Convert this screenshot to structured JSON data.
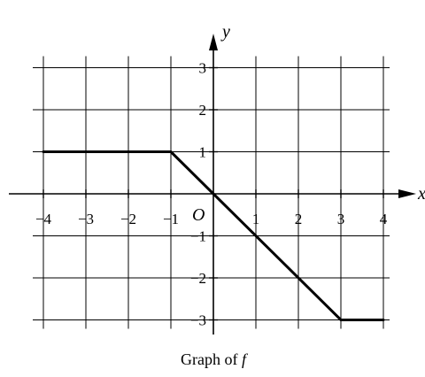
{
  "chart_data": {
    "type": "line",
    "title": "Graph of f",
    "caption_prefix": "Graph of ",
    "caption_var": "f",
    "xlabel": "x",
    "ylabel": "y",
    "origin_label": "O",
    "xlim": [
      -4,
      4
    ],
    "ylim": [
      -3,
      3
    ],
    "grid": true,
    "x_ticks": [
      {
        "value": -4,
        "label": "−4"
      },
      {
        "value": -3,
        "label": "−3"
      },
      {
        "value": -2,
        "label": "−2"
      },
      {
        "value": -1,
        "label": "−1"
      },
      {
        "value": 1,
        "label": "1"
      },
      {
        "value": 2,
        "label": "2"
      },
      {
        "value": 3,
        "label": "3"
      },
      {
        "value": 4,
        "label": "4"
      }
    ],
    "y_ticks": [
      {
        "value": 3,
        "label": "3"
      },
      {
        "value": 2,
        "label": "2"
      },
      {
        "value": 1,
        "label": "1"
      },
      {
        "value": -1,
        "label": "−1"
      },
      {
        "value": -2,
        "label": "−2"
      },
      {
        "value": -3,
        "label": "−3"
      }
    ],
    "series": [
      {
        "x": [
          -4,
          -1,
          3,
          4
        ],
        "y": [
          1,
          1,
          -3,
          -3
        ],
        "color": "#000000"
      }
    ]
  }
}
